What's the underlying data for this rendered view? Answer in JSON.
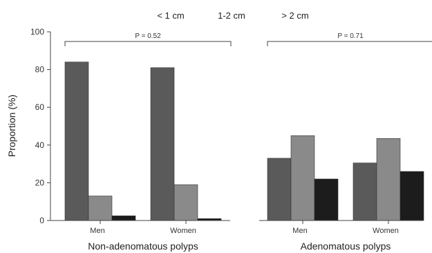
{
  "chart_data": {
    "type": "bar",
    "ylabel": "Proportion (%)",
    "ylim": [
      0,
      100
    ],
    "yticks": [
      0,
      20,
      40,
      60,
      80,
      100
    ],
    "grid": false,
    "legend_position": "top",
    "series": [
      {
        "name": "< 1 cm",
        "color": "#5a5a5a"
      },
      {
        "name": "1-2 cm",
        "color": "#8a8a8a"
      },
      {
        "name": "> 2 cm",
        "color": "#1c1c1c"
      }
    ],
    "groups": [
      {
        "label": "Non-adenomatous polyps",
        "p_value": "P = 0.52",
        "categories": [
          {
            "label": "Men",
            "values": [
              84,
              13,
              2.5
            ]
          },
          {
            "label": "Women",
            "values": [
              81,
              19,
              1
            ]
          }
        ]
      },
      {
        "label": "Adenomatous polyps",
        "p_value": "P = 0.71",
        "categories": [
          {
            "label": "Men",
            "values": [
              33,
              45,
              22
            ]
          },
          {
            "label": "Women",
            "values": [
              30.5,
              43.5,
              26
            ]
          }
        ]
      }
    ]
  }
}
